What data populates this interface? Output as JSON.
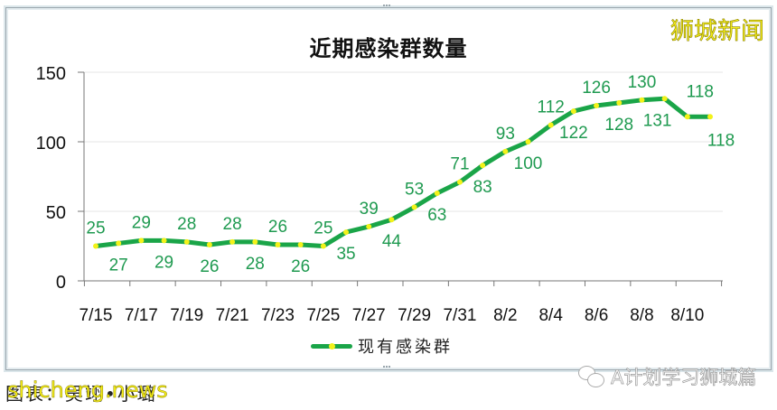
{
  "chart_data": {
    "type": "line",
    "title": "近期感染群数量",
    "xlabel": "",
    "ylabel": "",
    "ylim": [
      0,
      150
    ],
    "yticks": [
      0,
      50,
      100,
      150
    ],
    "grid": true,
    "legend_position": "bottom",
    "x": [
      "7/15",
      "7/16",
      "7/17",
      "7/18",
      "7/19",
      "7/20",
      "7/21",
      "7/22",
      "7/23",
      "7/24",
      "7/25",
      "7/26",
      "7/27",
      "7/28",
      "7/29",
      "7/30",
      "7/31",
      "8/1",
      "8/2",
      "8/3",
      "8/4",
      "8/5",
      "8/6",
      "8/7",
      "8/8",
      "8/9",
      "8/10",
      "8/11"
    ],
    "xtick_labels": [
      "7/15",
      "7/17",
      "7/19",
      "7/21",
      "7/23",
      "7/25",
      "7/27",
      "7/29",
      "7/31",
      "8/2",
      "8/4",
      "8/6",
      "8/8",
      "8/10"
    ],
    "series": [
      {
        "name": "现有感染群",
        "color": "#1aa548",
        "marker_color": "#f2f21a",
        "values": [
          25,
          27,
          29,
          29,
          28,
          26,
          28,
          28,
          26,
          26,
          25,
          35,
          39,
          44,
          53,
          63,
          71,
          83,
          93,
          100,
          112,
          122,
          126,
          128,
          130,
          131,
          118,
          118
        ]
      }
    ]
  },
  "header": {
    "title": "近期感染群数量",
    "watermark": "狮城新闻"
  },
  "legend": {
    "label": "现有感染群"
  },
  "footer": {
    "caption": "图表：吴翊•小璐",
    "watermark_left": "shicheng.news",
    "watermark_right": "A计划学习狮城篇"
  },
  "colors": {
    "line": "#1aa548",
    "marker": "#f2f21a",
    "label": "#1f9a50",
    "axis": "#777777",
    "grid": "#e6e6e6"
  }
}
